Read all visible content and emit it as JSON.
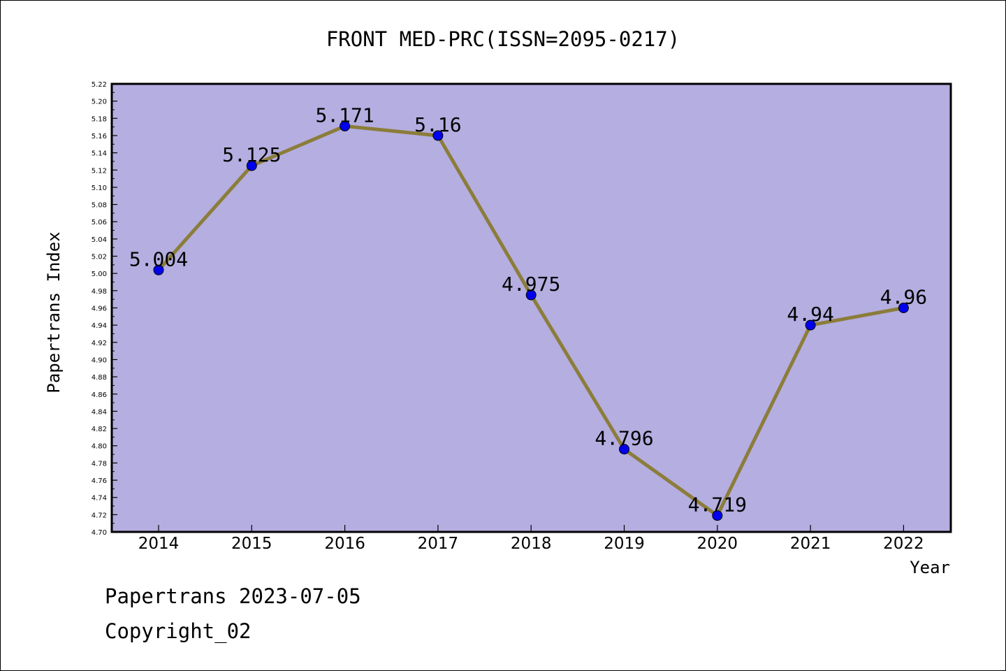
{
  "chart_data": {
    "type": "line",
    "title": "FRONT MED-PRC(ISSN=2095-0217)",
    "xlabel": "Year",
    "ylabel": "Papertrans Index",
    "categories": [
      "2014",
      "2015",
      "2016",
      "2017",
      "2018",
      "2019",
      "2020",
      "2021",
      "2022"
    ],
    "series": [
      {
        "values": [
          5.004,
          5.125,
          5.171,
          5.16,
          4.975,
          4.796,
          4.719,
          4.94,
          4.96
        ],
        "labels": [
          "5.004",
          "5.125",
          "5.171",
          "5.16",
          "4.975",
          "4.796",
          "4.719",
          "4.94",
          "4.96"
        ],
        "line_color": "#8b7d3a",
        "marker_color": "#0000ee"
      }
    ],
    "ylim": [
      4.7,
      5.22
    ],
    "yticks": [
      "4.70",
      "4.72",
      "4.74",
      "4.76",
      "4.78",
      "4.80",
      "4.82",
      "4.84",
      "4.86",
      "4.88",
      "4.90",
      "4.92",
      "4.94",
      "4.96",
      "4.98",
      "5.00",
      "5.02",
      "5.04",
      "5.06",
      "5.08",
      "5.10",
      "5.12",
      "5.14",
      "5.16",
      "5.18",
      "5.20",
      "5.22"
    ],
    "plot_background": "#b4aee1",
    "grid": false,
    "legend": "none"
  },
  "footer": {
    "line1": "Papertrans 2023-07-05",
    "line2": "Copyright_02"
  }
}
